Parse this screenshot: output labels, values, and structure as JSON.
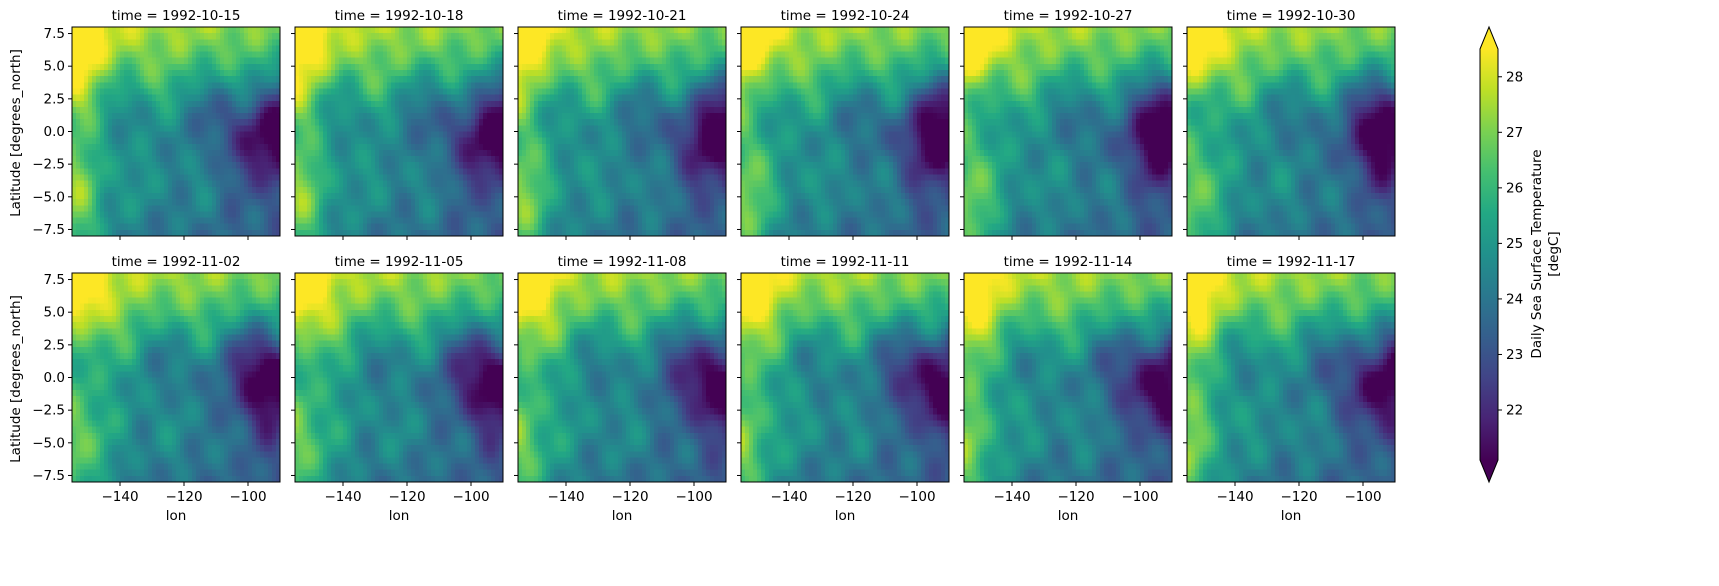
{
  "chart_data": {
    "type": "heatmap",
    "layout": {
      "rows": 2,
      "cols": 6
    },
    "panel_titles": [
      "time = 1992-10-15",
      "time = 1992-10-18",
      "time = 1992-10-21",
      "time = 1992-10-24",
      "time = 1992-10-27",
      "time = 1992-10-30",
      "time = 1992-11-02",
      "time = 1992-11-05",
      "time = 1992-11-08",
      "time = 1992-11-11",
      "time = 1992-11-14",
      "time = 1992-11-17"
    ],
    "xlabel": "lon",
    "ylabel": "Latitude [degrees_north]",
    "xlim": [
      -155,
      -90
    ],
    "ylim": [
      -8,
      8
    ],
    "x_ticks": [
      -140,
      -120,
      -100
    ],
    "x_tick_labels": [
      "−140",
      "−120",
      "−100"
    ],
    "y_ticks": [
      7.5,
      5.0,
      2.5,
      0.0,
      -2.5,
      -5.0,
      -7.5
    ],
    "y_tick_labels": [
      "7.5",
      "5.0",
      "2.5",
      "0.0",
      "−2.5",
      "−5.0",
      "−7.5"
    ],
    "colorbar": {
      "label_line1": "Daily Sea Surface Temperature",
      "label_line2": "[degC]",
      "range": [
        21.1,
        28.5
      ],
      "ticks": [
        22,
        23,
        24,
        25,
        26,
        27,
        28
      ],
      "tick_labels": [
        "22",
        "23",
        "24",
        "25",
        "26",
        "27",
        "28"
      ],
      "extend": "both",
      "colormap": "viridis"
    },
    "description_of_field": "Sea surface temperature over lon -155 to -90, lat -8 to 8. Warm (~28 degC) in north-west and south-west corners, cold (~21 degC) tongue near the equator east of -105 lon, with tropical-instability-wave undulations along ~2.5N."
  }
}
